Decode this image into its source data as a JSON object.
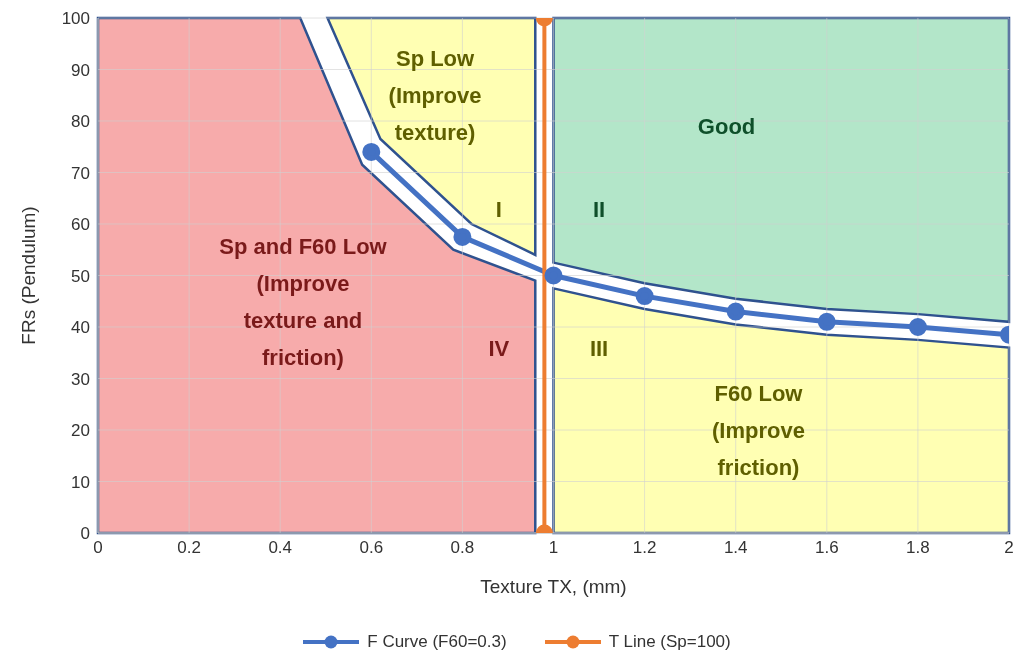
{
  "chart_data": {
    "type": "line",
    "xlabel": "Texture TX, (mm)",
    "ylabel": "FRs (Pendulum)",
    "xlim": [
      0,
      2
    ],
    "ylim": [
      0,
      100
    ],
    "xticks": [
      0,
      0.2,
      0.4,
      0.6,
      0.8,
      1,
      1.2,
      1.4,
      1.6,
      1.8,
      2
    ],
    "yticks": [
      0,
      10,
      20,
      30,
      40,
      50,
      60,
      70,
      80,
      90,
      100
    ],
    "grid": true,
    "legend": "bottom",
    "marker": "circle",
    "line_style": "solid",
    "series": [
      {
        "name": "F Curve (F60=0.3)",
        "color": "#4472c4",
        "x": [
          0.6,
          0.8,
          1,
          1.2,
          1.4,
          1.6,
          1.8,
          2
        ],
        "values": [
          74,
          57.5,
          50,
          46,
          43,
          41,
          40,
          38.5
        ]
      },
      {
        "name": "T Line (Sp=100)",
        "color": "#ed7d31",
        "x": [
          0.98,
          0.98
        ],
        "values": [
          0,
          100
        ]
      }
    ],
    "annotations": [
      "Sp Low (Improve texture)",
      "Good",
      "I",
      "II",
      "Sp and F60 Low (Improve texture and friction)",
      "IV",
      "III",
      "F60 Low (Improve friction)"
    ]
  }
}
